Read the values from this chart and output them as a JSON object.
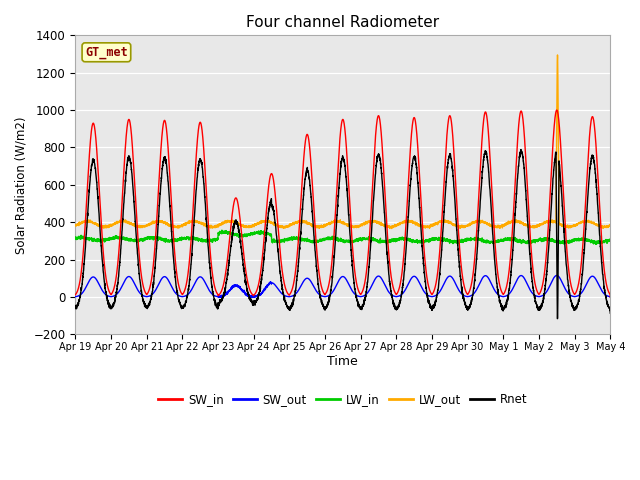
{
  "title": "Four channel Radiometer",
  "xlabel": "Time",
  "ylabel": "Solar Radiation (W/m2)",
  "ylim": [
    -200,
    1400
  ],
  "yticks": [
    -200,
    0,
    200,
    400,
    600,
    800,
    1000,
    1200,
    1400
  ],
  "station_label": "GT_met",
  "colors": {
    "SW_in": "#ff0000",
    "SW_out": "#0000ff",
    "LW_in": "#00cc00",
    "LW_out": "#ffaa00",
    "Rnet": "#000000"
  },
  "background_color": "#e8e8e8",
  "n_days": 15,
  "tick_labels": [
    "Apr 19",
    "Apr 20",
    "Apr 21",
    "Apr 22",
    "Apr 23",
    "Apr 24",
    "Apr 25",
    "Apr 26",
    "Apr 27",
    "Apr 28",
    "Apr 29",
    "Apr 30",
    "May 1",
    "May 2",
    "May 3",
    "May 4"
  ],
  "tick_positions": [
    0,
    1,
    2,
    3,
    4,
    5,
    6,
    7,
    8,
    9,
    10,
    11,
    12,
    13,
    14,
    15
  ]
}
